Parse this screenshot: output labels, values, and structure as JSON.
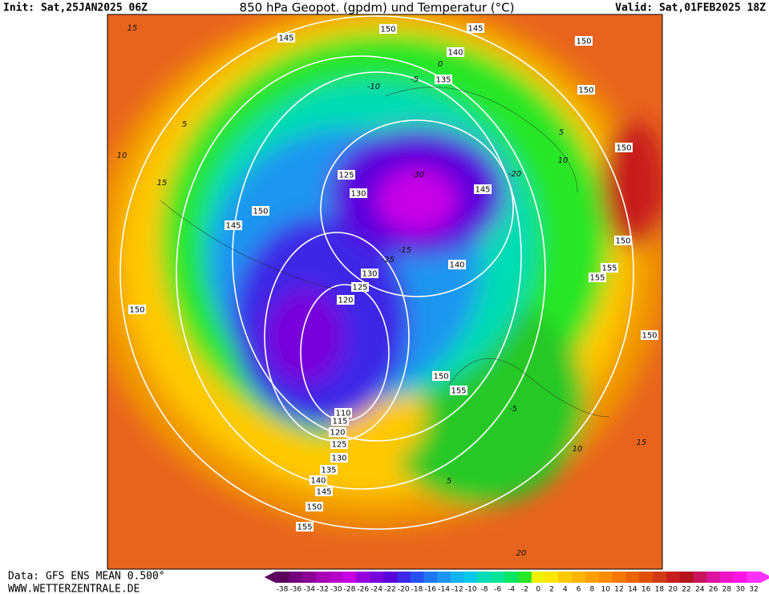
{
  "header": {
    "init": "Init: Sat,25JAN2025 06Z",
    "title": "850 hPa Geopot. (gpdm) und Temperatur (°C)",
    "valid": "Valid: Sat,01FEB2025 18Z"
  },
  "footer": {
    "data": "Data: GFS ENS MEAN 0.500°",
    "site": "WWW.WETTERZENTRALE.DE"
  },
  "colorbar": {
    "labels": [
      -38,
      -36,
      -34,
      -32,
      -30,
      -28,
      -26,
      -24,
      -22,
      -20,
      -18,
      -16,
      -14,
      -12,
      -10,
      -8,
      -6,
      -4,
      -2,
      0,
      2,
      4,
      6,
      8,
      10,
      12,
      14,
      16,
      18,
      20,
      22,
      24,
      26,
      28,
      30,
      32
    ],
    "colors": [
      "#5a005a",
      "#73007d",
      "#8c0096",
      "#a500b4",
      "#b400c8",
      "#c800e6",
      "#9600dc",
      "#7800dc",
      "#5a00dc",
      "#3c28e6",
      "#2850f0",
      "#1e78f0",
      "#1e96f0",
      "#14b4f0",
      "#00c8e6",
      "#00dcb4",
      "#00e696",
      "#00e664",
      "#28e628",
      "#f0f000",
      "#ffe600",
      "#ffc800",
      "#ffb400",
      "#ffa000",
      "#ff8c00",
      "#f57800",
      "#eb6400",
      "#dc5000",
      "#d23c14",
      "#c81e1e",
      "#b4141e",
      "#c8145a",
      "#dc14a0",
      "#f014c8",
      "#ff14e6",
      "#ff32ff"
    ]
  },
  "geopotential_labels": [
    145,
    150,
    145,
    150,
    140,
    135,
    150,
    150,
    125,
    130,
    145,
    150,
    145,
    150,
    140,
    155,
    155,
    130,
    125,
    120,
    150,
    150,
    150,
    155,
    110,
    115,
    120,
    125,
    130,
    135,
    140,
    145,
    150,
    155
  ],
  "temperature_labels": [
    -10,
    -5,
    0,
    5,
    10,
    15,
    -15,
    -20,
    -25,
    -30,
    5,
    10,
    15,
    -5,
    5,
    10,
    15,
    20
  ]
}
